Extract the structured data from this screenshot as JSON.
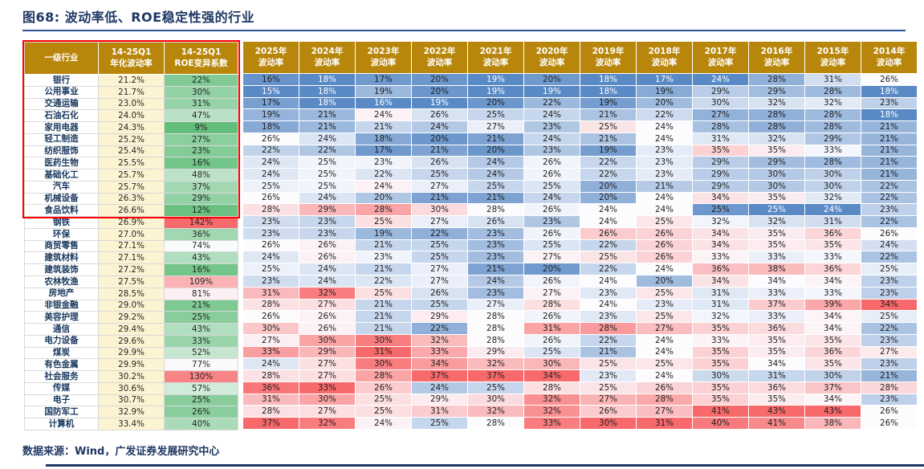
{
  "page": {
    "title": "图68: 波动率低、ROE稳定性强的行业",
    "footer": "数据来源：Wind，广发证券发展研究中心"
  },
  "colors": {
    "title_navy": "#1F3864",
    "rule_blue": "#2F5597",
    "header_gold": "#B8860B",
    "heat_low": "#5A8AC6",
    "heat_mid": "#FCFCFF",
    "heat_high": "#F8696B",
    "roe_low": "#63BE7B",
    "vol_col_bg": "#FCF3D2",
    "highlight_red": "#FE0000"
  },
  "chart_data": {
    "type": "heatmap",
    "title": "图68: 波动率低、ROE稳定性强的行业",
    "legend_note": "cell color scale per year column: blue=low volatility, white=mid, red=high; ROE变异系数 column: green=low, red=high",
    "columns": {
      "industry_header": "一级行业",
      "vol_header": [
        "14-25Q1",
        "年化波动率"
      ],
      "roe_header": [
        "14-25Q1",
        "ROE变异系数"
      ],
      "year_headers": [
        "2025年",
        "2024年",
        "2023年",
        "2022年",
        "2021年",
        "2020年",
        "2019年",
        "2018年",
        "2017年",
        "2016年",
        "2015年",
        "2014年"
      ],
      "year_subheader": "波动率"
    },
    "highlighted_rows": 12,
    "rows": [
      {
        "industry": "银行",
        "vol_14_25q1": "21.2%",
        "roe_cv": "22%",
        "yearly_vol_pct": [
          16,
          18,
          17,
          20,
          19,
          20,
          18,
          17,
          24,
          28,
          31,
          26
        ]
      },
      {
        "industry": "公用事业",
        "vol_14_25q1": "21.7%",
        "roe_cv": "30%",
        "yearly_vol_pct": [
          15,
          18,
          19,
          20,
          19,
          19,
          18,
          19,
          29,
          29,
          28,
          18
        ]
      },
      {
        "industry": "交通运输",
        "vol_14_25q1": "23.0%",
        "roe_cv": "31%",
        "yearly_vol_pct": [
          17,
          18,
          16,
          19,
          20,
          22,
          19,
          20,
          30,
          32,
          32,
          23
        ]
      },
      {
        "industry": "石油石化",
        "vol_14_25q1": "24.0%",
        "roe_cv": "47%",
        "yearly_vol_pct": [
          19,
          21,
          24,
          26,
          25,
          24,
          21,
          22,
          27,
          28,
          28,
          18
        ]
      },
      {
        "industry": "家用电器",
        "vol_14_25q1": "24.3%",
        "roe_cv": "9%",
        "yearly_vol_pct": [
          18,
          21,
          21,
          24,
          27,
          23,
          25,
          24,
          28,
          28,
          28,
          21
        ]
      },
      {
        "industry": "轻工制造",
        "vol_14_25q1": "25.2%",
        "roe_cv": "27%",
        "yearly_vol_pct": [
          26,
          24,
          18,
          20,
          21,
          24,
          21,
          24,
          31,
          32,
          29,
          21
        ]
      },
      {
        "industry": "纺织服饰",
        "vol_14_25q1": "25.4%",
        "roe_cv": "23%",
        "yearly_vol_pct": [
          22,
          22,
          17,
          21,
          20,
          23,
          19,
          23,
          35,
          35,
          33,
          21
        ]
      },
      {
        "industry": "医药生物",
        "vol_14_25q1": "25.5%",
        "roe_cv": "16%",
        "yearly_vol_pct": [
          24,
          25,
          23,
          26,
          24,
          26,
          22,
          23,
          29,
          29,
          28,
          21
        ]
      },
      {
        "industry": "基础化工",
        "vol_14_25q1": "25.7%",
        "roe_cv": "48%",
        "yearly_vol_pct": [
          24,
          25,
          22,
          25,
          24,
          26,
          22,
          23,
          29,
          30,
          30,
          21
        ]
      },
      {
        "industry": "汽车",
        "vol_14_25q1": "25.7%",
        "roe_cv": "37%",
        "yearly_vol_pct": [
          25,
          25,
          24,
          27,
          25,
          25,
          20,
          21,
          29,
          30,
          30,
          22
        ]
      },
      {
        "industry": "机械设备",
        "vol_14_25q1": "26.3%",
        "roe_cv": "29%",
        "yearly_vol_pct": [
          26,
          24,
          20,
          21,
          21,
          24,
          20,
          24,
          34,
          35,
          32,
          22
        ]
      },
      {
        "industry": "食品饮料",
        "vol_14_25q1": "26.6%",
        "roe_cv": "12%",
        "yearly_vol_pct": [
          28,
          29,
          28,
          30,
          28,
          26,
          24,
          24,
          25,
          25,
          24,
          23
        ]
      },
      {
        "industry": "钢铁",
        "vol_14_25q1": "26.9%",
        "roe_cv": "142%",
        "yearly_vol_pct": [
          23,
          23,
          25,
          27,
          26,
          23,
          24,
          25,
          32,
          32,
          31,
          22
        ]
      },
      {
        "industry": "环保",
        "vol_14_25q1": "27.0%",
        "roe_cv": "36%",
        "yearly_vol_pct": [
          23,
          23,
          19,
          22,
          23,
          26,
          26,
          26,
          34,
          35,
          36,
          26
        ]
      },
      {
        "industry": "商贸零售",
        "vol_14_25q1": "27.1%",
        "roe_cv": "74%",
        "yearly_vol_pct": [
          26,
          26,
          21,
          25,
          23,
          25,
          22,
          26,
          34,
          35,
          35,
          24
        ]
      },
      {
        "industry": "建筑材料",
        "vol_14_25q1": "27.1%",
        "roe_cv": "43%",
        "yearly_vol_pct": [
          24,
          26,
          23,
          25,
          23,
          27,
          25,
          26,
          33,
          33,
          33,
          22
        ]
      },
      {
        "industry": "建筑装饰",
        "vol_14_25q1": "27.2%",
        "roe_cv": "16%",
        "yearly_vol_pct": [
          25,
          24,
          21,
          27,
          21,
          20,
          22,
          24,
          36,
          38,
          36,
          25
        ]
      },
      {
        "industry": "农林牧渔",
        "vol_14_25q1": "27.5%",
        "roe_cv": "109%",
        "yearly_vol_pct": [
          23,
          24,
          22,
          27,
          24,
          26,
          24,
          20,
          34,
          34,
          34,
          23
        ]
      },
      {
        "industry": "房地产",
        "vol_14_25q1": "28.5%",
        "roe_cv": "81%",
        "yearly_vol_pct": [
          31,
          32,
          25,
          26,
          23,
          27,
          23,
          25,
          31,
          33,
          33,
          23
        ]
      },
      {
        "industry": "非银金融",
        "vol_14_25q1": "29.0%",
        "roe_cv": "21%",
        "yearly_vol_pct": [
          28,
          27,
          21,
          25,
          27,
          28,
          24,
          23,
          31,
          37,
          39,
          34
        ]
      },
      {
        "industry": "美容护理",
        "vol_14_25q1": "29.2%",
        "roe_cv": "25%",
        "yearly_vol_pct": [
          26,
          26,
          21,
          29,
          28,
          26,
          23,
          25,
          32,
          33,
          34,
          25
        ]
      },
      {
        "industry": "通信",
        "vol_14_25q1": "29.4%",
        "roe_cv": "43%",
        "yearly_vol_pct": [
          30,
          26,
          21,
          22,
          28,
          31,
          28,
          27,
          35,
          36,
          34,
          22
        ]
      },
      {
        "industry": "电力设备",
        "vol_14_25q1": "29.6%",
        "roe_cv": "33%",
        "yearly_vol_pct": [
          27,
          30,
          30,
          32,
          28,
          26,
          22,
          24,
          33,
          35,
          35,
          23
        ]
      },
      {
        "industry": "煤炭",
        "vol_14_25q1": "29.9%",
        "roe_cv": "52%",
        "yearly_vol_pct": [
          33,
          29,
          31,
          33,
          29,
          25,
          21,
          24,
          35,
          35,
          36,
          27
        ]
      },
      {
        "industry": "有色金属",
        "vol_14_25q1": "29.9%",
        "roe_cv": "77%",
        "yearly_vol_pct": [
          24,
          27,
          30,
          34,
          32,
          30,
          25,
          25,
          35,
          34,
          35,
          23
        ]
      },
      {
        "industry": "社会服务",
        "vol_14_25q1": "30.2%",
        "roe_cv": "130%",
        "yearly_vol_pct": [
          28,
          27,
          28,
          37,
          37,
          34,
          23,
          24,
          30,
          31,
          30,
          21
        ]
      },
      {
        "industry": "传媒",
        "vol_14_25q1": "30.6%",
        "roe_cv": "57%",
        "yearly_vol_pct": [
          36,
          33,
          26,
          24,
          25,
          28,
          25,
          26,
          35,
          36,
          37,
          28
        ]
      },
      {
        "industry": "电子",
        "vol_14_25q1": "30.7%",
        "roe_cv": "25%",
        "yearly_vol_pct": [
          31,
          30,
          25,
          29,
          30,
          32,
          27,
          28,
          35,
          35,
          34,
          23
        ]
      },
      {
        "industry": "国防军工",
        "vol_14_25q1": "32.9%",
        "roe_cv": "26%",
        "yearly_vol_pct": [
          28,
          27,
          25,
          31,
          32,
          32,
          26,
          27,
          41,
          43,
          43,
          26
        ]
      },
      {
        "industry": "计算机",
        "vol_14_25q1": "33.4%",
        "roe_cv": "40%",
        "yearly_vol_pct": [
          37,
          32,
          24,
          25,
          28,
          33,
          30,
          31,
          40,
          41,
          38,
          26
        ]
      }
    ]
  }
}
